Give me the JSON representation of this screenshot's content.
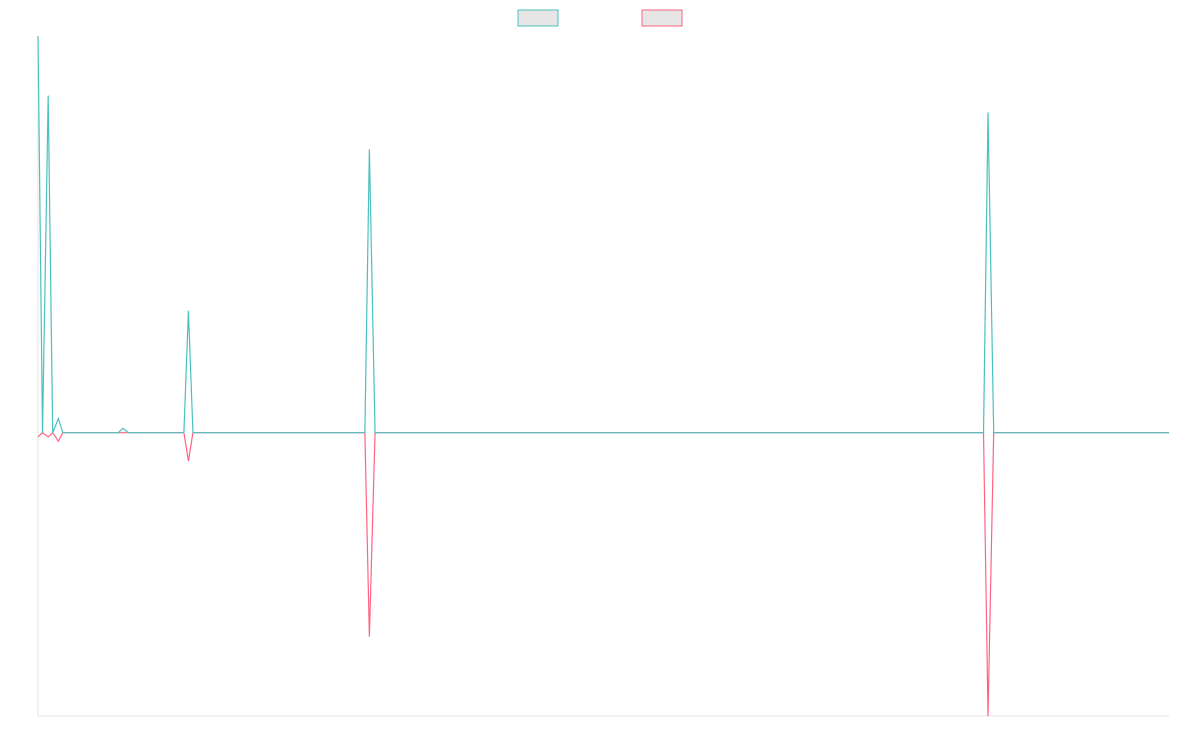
{
  "chart_data": {
    "type": "line",
    "title": "",
    "xlabel": "",
    "ylabel": "",
    "grid": false,
    "legend_position": "top-center",
    "xlim": [
      0,
      100
    ],
    "ylim": [
      -10,
      14
    ],
    "x": [
      0,
      0.4,
      0.9,
      1.3,
      1.8,
      2.2,
      7.1,
      7.5,
      8,
      12.9,
      13.3,
      13.7,
      28.9,
      29.3,
      29.8,
      83.6,
      84,
      84.5,
      100
    ],
    "series": [
      {
        "name": "",
        "color": "#4bc0c0",
        "fill": "#e6e6e6",
        "values": [
          14,
          0,
          11.9,
          0,
          0.5,
          0,
          0,
          0.15,
          0,
          0,
          4.3,
          0,
          0,
          10,
          0,
          0,
          11.3,
          0,
          0
        ]
      },
      {
        "name": "",
        "color": "#ff6384",
        "fill": "#e6e6e6",
        "values": [
          -0.15,
          0,
          -0.15,
          0,
          -0.3,
          0,
          0,
          0,
          0,
          0,
          -1,
          0,
          0,
          -7.2,
          0,
          0,
          -10,
          0,
          0
        ]
      }
    ]
  }
}
